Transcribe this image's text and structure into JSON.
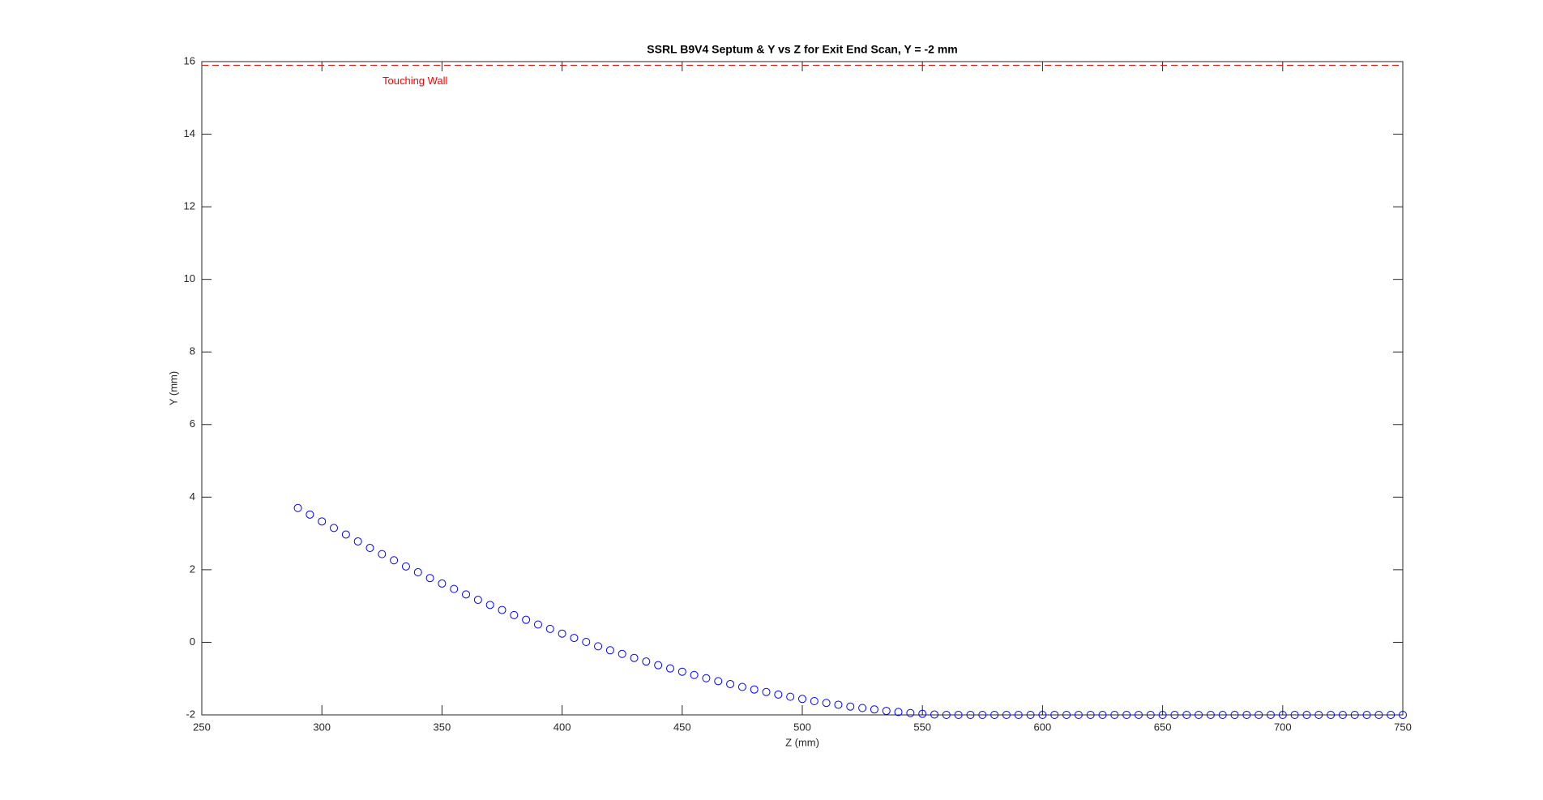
{
  "chart_data": {
    "type": "scatter",
    "title": "SSRL B9V4 Septum & Y vs Z for Exit End Scan, Y = -2 mm",
    "xlabel": "Z (mm)",
    "ylabel": "Y (mm)",
    "x": [
      290,
      295,
      300,
      305,
      310,
      315,
      320,
      325,
      330,
      335,
      340,
      345,
      350,
      355,
      360,
      365,
      370,
      375,
      380,
      385,
      390,
      395,
      400,
      405,
      410,
      415,
      420,
      425,
      430,
      435,
      440,
      445,
      450,
      455,
      460,
      465,
      470,
      475,
      480,
      485,
      490,
      495,
      500,
      505,
      510,
      515,
      520,
      525,
      530,
      535,
      540,
      545,
      550,
      555,
      560,
      565,
      570,
      575,
      580,
      585,
      590,
      595,
      600,
      605,
      610,
      615,
      620,
      625,
      630,
      635,
      640,
      645,
      650,
      655,
      660,
      665,
      670,
      675,
      680,
      685,
      690,
      695,
      700,
      705,
      710,
      715,
      720,
      725,
      730,
      735,
      740,
      745,
      750
    ],
    "values": [
      3.7,
      3.52,
      3.33,
      3.15,
      2.97,
      2.78,
      2.6,
      2.43,
      2.26,
      2.09,
      1.93,
      1.77,
      1.62,
      1.47,
      1.32,
      1.17,
      1.03,
      0.89,
      0.75,
      0.62,
      0.49,
      0.37,
      0.24,
      0.12,
      0.01,
      -0.11,
      -0.22,
      -0.32,
      -0.43,
      -0.53,
      -0.63,
      -0.72,
      -0.81,
      -0.9,
      -0.99,
      -1.07,
      -1.15,
      -1.23,
      -1.3,
      -1.37,
      -1.44,
      -1.5,
      -1.56,
      -1.62,
      -1.67,
      -1.72,
      -1.77,
      -1.81,
      -1.85,
      -1.89,
      -1.92,
      -1.95,
      -1.97,
      -1.99,
      -2,
      -2,
      -2,
      -2,
      -2,
      -2,
      -2,
      -2,
      -2,
      -2,
      -2,
      -2,
      -2,
      -2,
      -2,
      -2,
      -2,
      -2,
      -2,
      -2,
      -2,
      -2,
      -2,
      -2,
      -2,
      -2,
      -2,
      -2,
      -2,
      -2,
      -2,
      -2,
      -2,
      -2,
      -2,
      -2,
      -2,
      -2,
      -2
    ],
    "color": "#0000ff",
    "hline": {
      "value": 15.9,
      "color": "#ff0000",
      "label": "Touching Wall"
    },
    "xlim": [
      250,
      750
    ],
    "xticks": [
      250,
      300,
      350,
      400,
      450,
      500,
      550,
      600,
      650,
      700,
      750
    ],
    "ylim": [
      -2,
      16
    ],
    "yticks": [
      -2,
      0,
      2,
      4,
      6,
      8,
      10,
      12,
      14,
      16
    ],
    "grid": false
  }
}
